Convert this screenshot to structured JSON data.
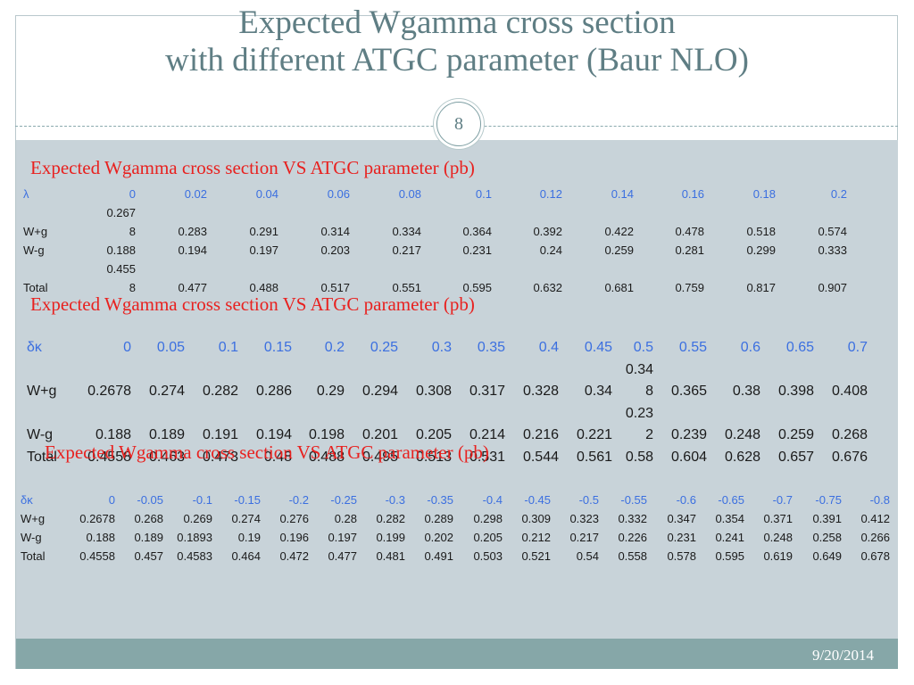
{
  "title": {
    "line1": "Expected Wgamma cross section",
    "line2": "with different ATGC parameter (Baur NLO)"
  },
  "page_number": "8",
  "footer_date": "9/20/2014",
  "colors": {
    "heading_red": "#e8211f",
    "param_blue": "#3b6fe0",
    "title_slate": "#5f7e84",
    "content_bg": "#c8d3d9",
    "footer_bar": "#86a7a8"
  },
  "tables": [
    {
      "heading": "Expected Wgamma cross section VS ATGC parameter (pb)",
      "header": [
        "λ",
        "0",
        "0.02",
        "0.04",
        "0.06",
        "0.08",
        "0.1",
        "0.12",
        "0.14",
        "0.16",
        "0.18",
        "0.2"
      ],
      "rows": [
        [
          "W+g",
          "0.267\n8",
          "0.283",
          "0.291",
          "0.314",
          "0.334",
          "0.364",
          "0.392",
          "0.422",
          "0.478",
          "0.518",
          "0.574"
        ],
        [
          "W-g",
          "0.188",
          "0.194",
          "0.197",
          "0.203",
          "0.217",
          "0.231",
          "0.24",
          "0.259",
          "0.281",
          "0.299",
          "0.333"
        ],
        [
          "Total",
          "0.455\n8",
          "0.477",
          "0.488",
          "0.517",
          "0.551",
          "0.595",
          "0.632",
          "0.681",
          "0.759",
          "0.817",
          "0.907"
        ]
      ]
    },
    {
      "heading": "Expected Wgamma cross section VS ATGC parameter (pb)",
      "header": [
        "δκ",
        "0",
        "0.05",
        "0.1",
        "0.15",
        "0.2",
        "0.25",
        "0.3",
        "0.35",
        "0.4",
        "0.45",
        "0.5",
        "0.55",
        "0.6",
        "0.65",
        "0.7"
      ],
      "rows": [
        [
          "W+g",
          "0.2678",
          "0.274",
          "0.282",
          "0.286",
          "0.29",
          "0.294",
          "0.308",
          "0.317",
          "0.328",
          "0.34",
          "0.34\n8",
          "0.365",
          "0.38",
          "0.398",
          "0.408"
        ],
        [
          "W-g",
          "0.188",
          "0.189",
          "0.191",
          "0.194",
          "0.198",
          "0.201",
          "0.205",
          "0.214",
          "0.216",
          "0.221",
          "0.23\n2",
          "0.239",
          "0.248",
          "0.259",
          "0.268"
        ],
        [
          "Total",
          "0.4558",
          "0.463",
          "0.473",
          "0.48",
          "0.488",
          "0.495",
          "0.513",
          "0.531",
          "0.544",
          "0.561",
          "0.58",
          "0.604",
          "0.628",
          "0.657",
          "0.676"
        ]
      ]
    },
    {
      "heading": "Expected Wgamma cross section VS ATGC parameter (pb)",
      "header": [
        "δκ",
        "0",
        "-0.05",
        "-0.1",
        "-0.15",
        "-0.2",
        "-0.25",
        "-0.3",
        "-0.35",
        "-0.4",
        "-0.45",
        "-0.5",
        "-0.55",
        "-0.6",
        "-0.65",
        "-0.7",
        "-0.75",
        "-0.8"
      ],
      "rows": [
        [
          "W+g",
          "0.2678",
          "0.268",
          "0.269",
          "0.274",
          "0.276",
          "0.28",
          "0.282",
          "0.289",
          "0.298",
          "0.309",
          "0.323",
          "0.332",
          "0.347",
          "0.354",
          "0.371",
          "0.391",
          "0.412"
        ],
        [
          "W-g",
          "0.188",
          "0.189",
          "0.1893",
          "0.19",
          "0.196",
          "0.197",
          "0.199",
          "0.202",
          "0.205",
          "0.212",
          "0.217",
          "0.226",
          "0.231",
          "0.241",
          "0.248",
          "0.258",
          "0.266"
        ],
        [
          "Total",
          "0.4558",
          "0.457",
          "0.4583",
          "0.464",
          "0.472",
          "0.477",
          "0.481",
          "0.491",
          "0.503",
          "0.521",
          "0.54",
          "0.558",
          "0.578",
          "0.595",
          "0.619",
          "0.649",
          "0.678"
        ]
      ]
    }
  ]
}
